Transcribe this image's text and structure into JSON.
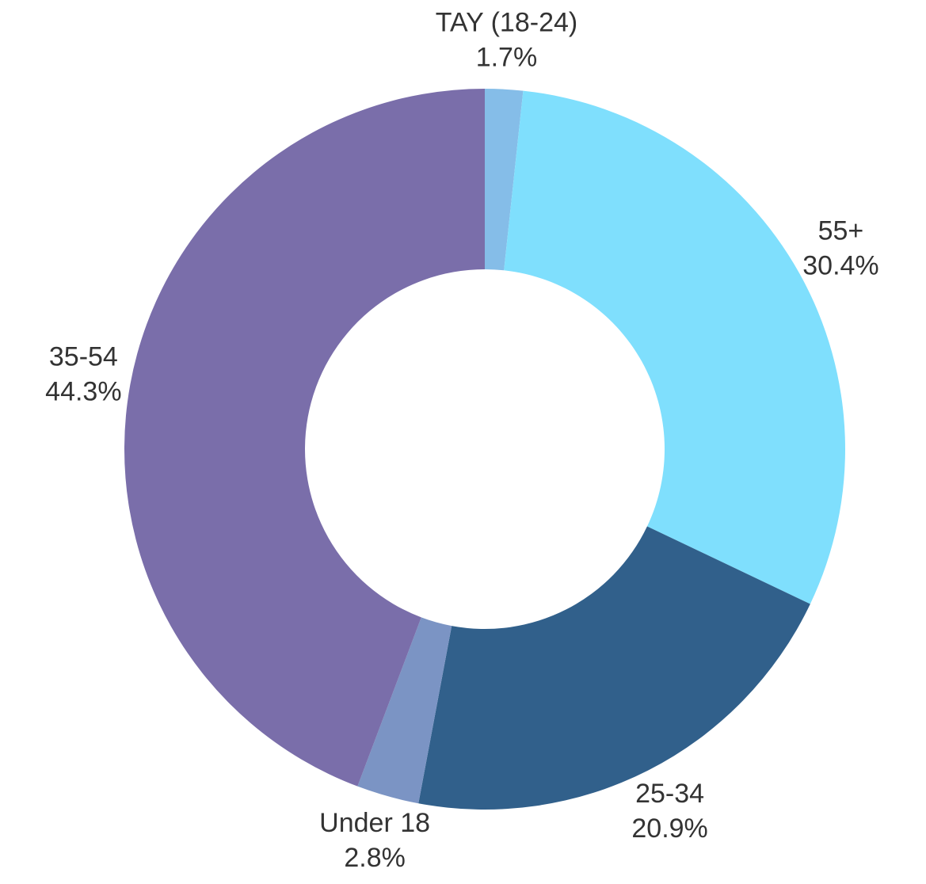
{
  "chart_data": {
    "type": "pie",
    "categories": [
      "TAY (18-24)",
      "55+",
      "25-34",
      "Under 18",
      "35-54"
    ],
    "values": [
      1.7,
      30.4,
      20.9,
      2.8,
      44.3
    ],
    "value_labels": [
      "1.7%",
      "30.4%",
      "20.9%",
      "2.8%",
      "44.3%"
    ],
    "colors": [
      "#85bde8",
      "#7fdffd",
      "#31608b",
      "#7b94c4",
      "#7a6eaa"
    ]
  }
}
